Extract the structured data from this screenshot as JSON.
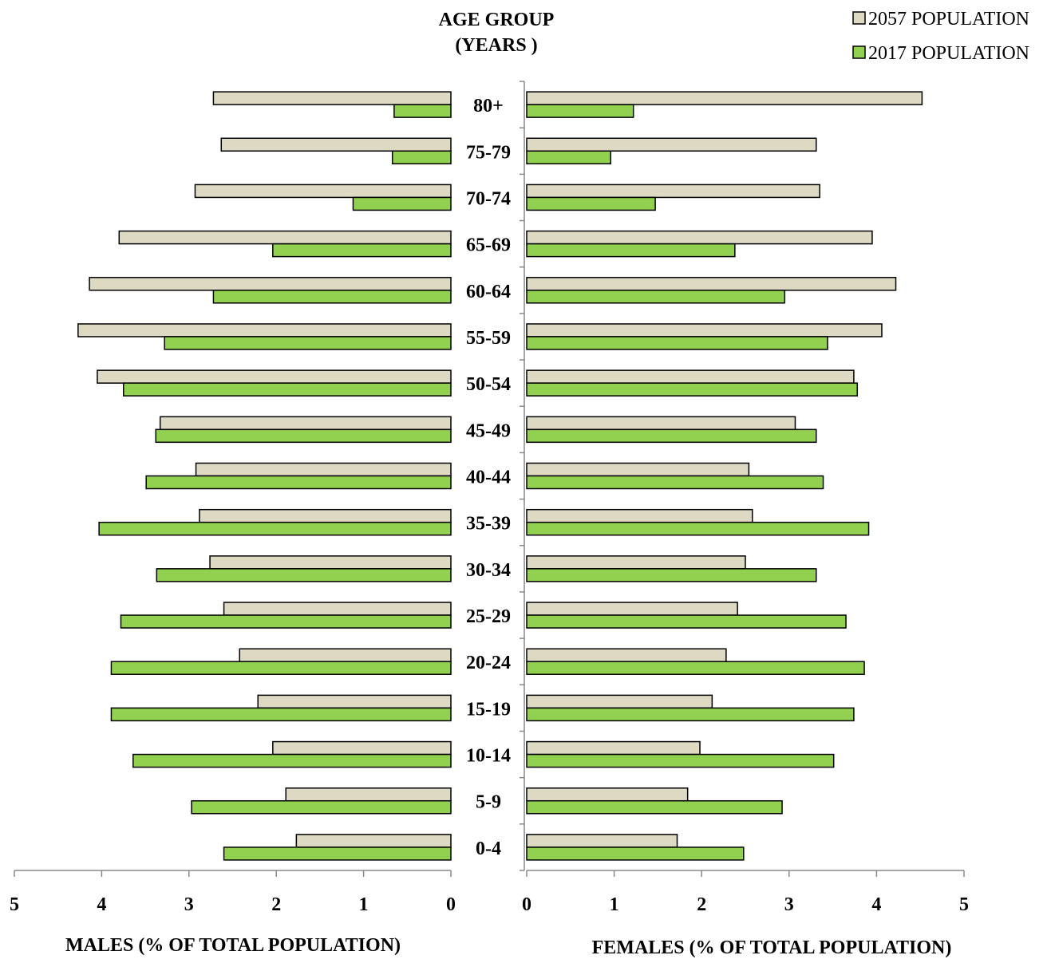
{
  "chart_data": {
    "type": "bar",
    "title": "AGE GROUP",
    "subtitle": "(YEARS )",
    "categories": [
      "80+",
      "75-79",
      "70-74",
      "65-69",
      "60-64",
      "55-59",
      "50-54",
      "45-49",
      "40-44",
      "35-39",
      "30-34",
      "25-29",
      "20-24",
      "15-19",
      "10-14",
      "5-9",
      "0-4"
    ],
    "legend_position": "top-right",
    "colors": {
      "pop_2057": "#ddd9c3",
      "pop_2017": "#92d050",
      "bar_outline": "#000000"
    },
    "panels": [
      {
        "name": "males",
        "xlabel": "MALES (% OF TOTAL POPULATION)",
        "xlim": [
          0,
          5
        ],
        "x_reversed": true,
        "ticks": [
          "5",
          "4",
          "3",
          "2",
          "1",
          "0"
        ],
        "series": [
          {
            "name": "2057 POPULATION",
            "values": [
              2.72,
              2.63,
              2.93,
              3.8,
              4.14,
              4.27,
              4.05,
              3.33,
              2.92,
              2.88,
              2.76,
              2.6,
              2.42,
              2.21,
              2.04,
              1.89,
              1.77
            ]
          },
          {
            "name": "2017 POPULATION",
            "values": [
              0.65,
              0.67,
              1.12,
              2.04,
              2.72,
              3.28,
              3.75,
              3.38,
              3.49,
              4.03,
              3.37,
              3.78,
              3.89,
              3.89,
              3.64,
              2.97,
              2.6
            ]
          }
        ]
      },
      {
        "name": "females",
        "xlabel": "FEMALES (% OF TOTAL POPULATION)",
        "xlim": [
          0,
          5
        ],
        "x_reversed": false,
        "ticks": [
          "0",
          "1",
          "2",
          "3",
          "4",
          "5"
        ],
        "series": [
          {
            "name": "2057 POPULATION",
            "values": [
              4.52,
              3.31,
              3.35,
              3.95,
              4.22,
              4.06,
              3.74,
              3.07,
              2.54,
              2.58,
              2.5,
              2.41,
              2.28,
              2.12,
              1.98,
              1.84,
              1.72
            ]
          },
          {
            "name": "2017 POPULATION",
            "values": [
              1.22,
              0.96,
              1.47,
              2.38,
              2.95,
              3.44,
              3.78,
              3.31,
              3.39,
              3.91,
              3.31,
              3.65,
              3.86,
              3.74,
              3.51,
              2.92,
              2.48
            ]
          }
        ]
      }
    ]
  }
}
